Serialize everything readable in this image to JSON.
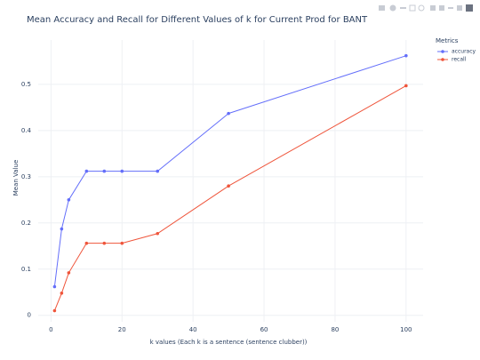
{
  "chart_data": {
    "type": "line",
    "title": "Mean Accuracy and Recall for Different Values of k for Current Prod for BANT",
    "x_label": "k values (Each k is a sentence (sentence clubber))",
    "y_label": "Mean Value",
    "legend_title": "Metrics",
    "legend_position": "top-right",
    "x": [
      1,
      3,
      5,
      10,
      15,
      20,
      30,
      50,
      100
    ],
    "series": [
      {
        "name": "accuracy",
        "color": "#636efa",
        "values": [
          0.062,
          0.187,
          0.25,
          0.312,
          0.312,
          0.312,
          0.312,
          0.437,
          0.562
        ]
      },
      {
        "name": "recall",
        "color": "#ef553b",
        "values": [
          0.01,
          0.048,
          0.092,
          0.156,
          0.156,
          0.156,
          0.177,
          0.28,
          0.497
        ]
      }
    ],
    "xlim": [
      -3.6,
      104.8
    ],
    "xticks": [
      0,
      20,
      40,
      60,
      80,
      100
    ],
    "ylim": [
      -0.014,
      0.596
    ],
    "yticks": [
      0,
      0.1,
      0.2,
      0.3,
      0.4,
      0.5
    ],
    "grid": true
  }
}
